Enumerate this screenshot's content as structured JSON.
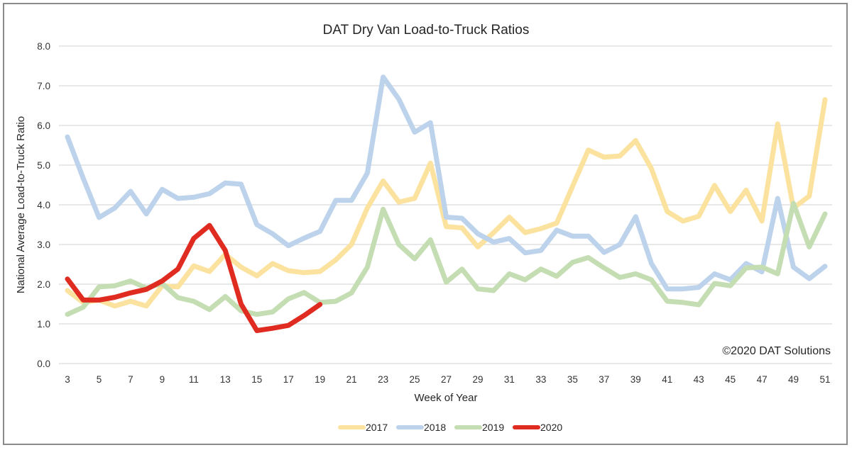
{
  "chart_data": {
    "type": "line",
    "title": "DAT Dry Van Load-to-Truck Ratios",
    "xlabel": "Week of Year",
    "ylabel": "National Average Load-to-Truck Ratio",
    "annotation": "©2020 DAT Solutions",
    "ylim": [
      0,
      8
    ],
    "xlim": [
      3,
      51
    ],
    "y_ticks": [
      "0.0",
      "1.0",
      "2.0",
      "3.0",
      "4.0",
      "5.0",
      "6.0",
      "7.0",
      "8.0"
    ],
    "x_ticks": [
      "3",
      "5",
      "7",
      "9",
      "11",
      "13",
      "15",
      "17",
      "19",
      "21",
      "23",
      "25",
      "27",
      "29",
      "31",
      "33",
      "35",
      "37",
      "39",
      "41",
      "43",
      "45",
      "47",
      "49",
      "51"
    ],
    "grid": true,
    "legend_position": "bottom",
    "x": [
      3,
      4,
      5,
      6,
      7,
      8,
      9,
      10,
      11,
      12,
      13,
      14,
      15,
      16,
      17,
      18,
      19,
      20,
      21,
      22,
      23,
      24,
      25,
      26,
      27,
      28,
      29,
      30,
      31,
      32,
      33,
      34,
      35,
      36,
      37,
      38,
      39,
      40,
      41,
      42,
      43,
      44,
      45,
      46,
      47,
      48,
      49,
      50,
      51
    ],
    "series": [
      {
        "name": "2017",
        "color": "#fbe29e",
        "values": [
          1.84,
          1.54,
          1.6,
          1.45,
          1.57,
          1.45,
          1.96,
          1.93,
          2.46,
          2.32,
          2.75,
          2.43,
          2.21,
          2.52,
          2.34,
          2.29,
          2.32,
          2.61,
          3.0,
          3.92,
          4.6,
          4.07,
          4.16,
          5.05,
          3.45,
          3.42,
          2.94,
          3.3,
          3.69,
          3.3,
          3.4,
          3.54,
          4.46,
          5.38,
          5.2,
          5.23,
          5.62,
          4.91,
          3.83,
          3.59,
          3.71,
          4.49,
          3.83,
          4.37,
          3.59,
          6.04,
          3.92,
          4.22,
          6.65
        ]
      },
      {
        "name": "2018",
        "color": "#bdd3ec",
        "values": [
          5.71,
          4.67,
          3.68,
          3.92,
          4.34,
          3.77,
          4.39,
          4.16,
          4.19,
          4.28,
          4.55,
          4.52,
          3.5,
          3.27,
          2.97,
          3.16,
          3.33,
          4.11,
          4.11,
          4.8,
          7.22,
          6.66,
          5.83,
          6.07,
          3.69,
          3.66,
          3.27,
          3.06,
          3.15,
          2.79,
          2.85,
          3.36,
          3.21,
          3.21,
          2.8,
          3.0,
          3.7,
          2.52,
          1.88,
          1.88,
          1.92,
          2.26,
          2.11,
          2.52,
          2.31,
          4.16,
          2.43,
          2.14,
          2.45
        ]
      },
      {
        "name": "2019",
        "color": "#c5ddb3",
        "values": [
          1.24,
          1.42,
          1.93,
          1.96,
          2.08,
          1.9,
          2.02,
          1.66,
          1.57,
          1.36,
          1.69,
          1.33,
          1.24,
          1.3,
          1.63,
          1.79,
          1.54,
          1.57,
          1.78,
          2.43,
          3.89,
          3.0,
          2.64,
          3.12,
          2.05,
          2.38,
          1.88,
          1.84,
          2.26,
          2.11,
          2.38,
          2.2,
          2.55,
          2.67,
          2.41,
          2.17,
          2.26,
          2.11,
          1.57,
          1.54,
          1.48,
          2.02,
          1.96,
          2.41,
          2.43,
          2.26,
          4.04,
          2.94,
          3.77
        ]
      },
      {
        "name": "2020",
        "color": "#e02b20",
        "values": [
          2.13,
          1.6,
          1.6,
          1.67,
          1.78,
          1.87,
          2.08,
          2.38,
          3.15,
          3.48,
          2.85,
          1.5,
          0.83,
          0.89,
          0.96,
          1.21,
          1.49
        ]
      }
    ]
  }
}
